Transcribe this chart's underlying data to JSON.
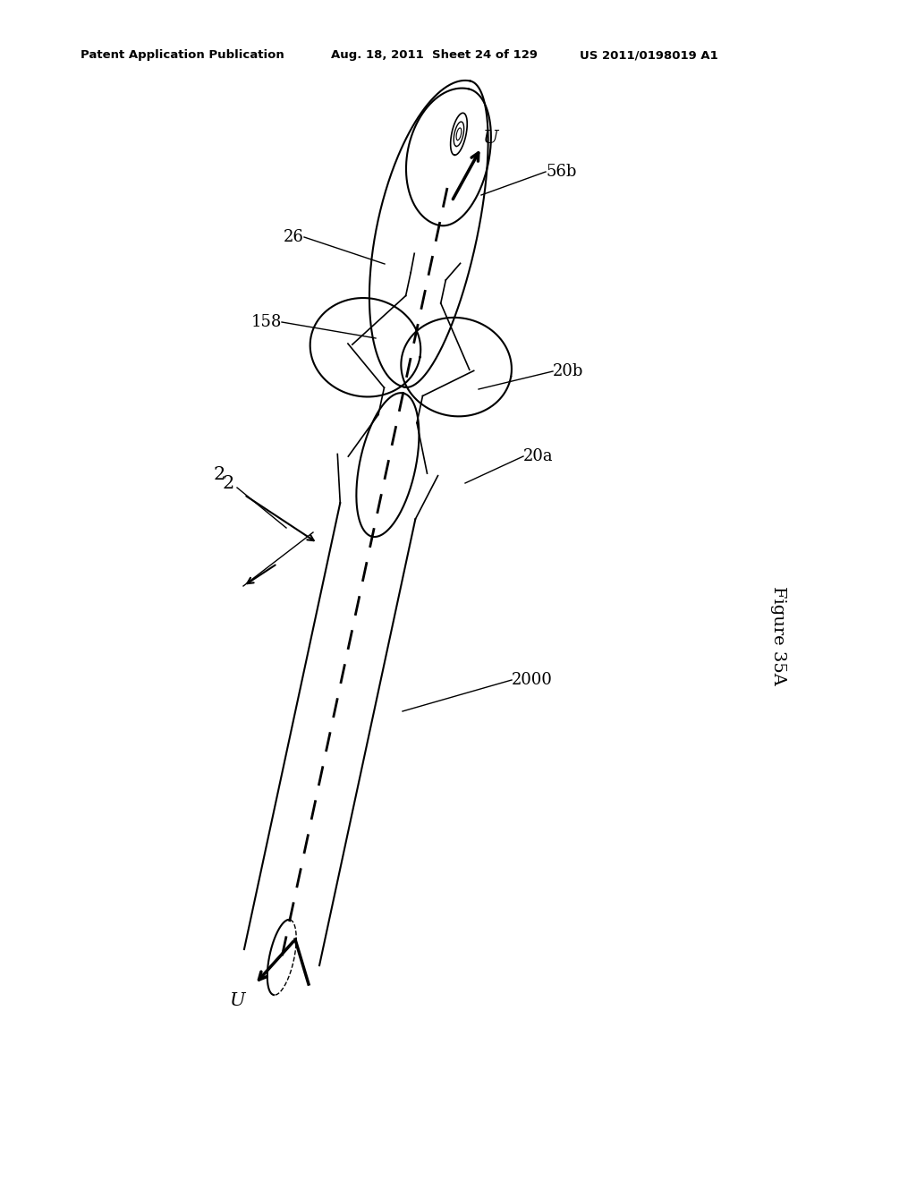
{
  "title_left": "Patent Application Publication",
  "title_mid": "Aug. 18, 2011  Sheet 24 of 129",
  "title_right": "US 2011/0198019 A1",
  "figure_label": "Figure 35A",
  "bg_color": "#ffffff",
  "line_color": "#000000",
  "labels": [
    "U",
    "U",
    "26",
    "56b",
    "158",
    "20b",
    "20a",
    "2",
    "2000"
  ]
}
